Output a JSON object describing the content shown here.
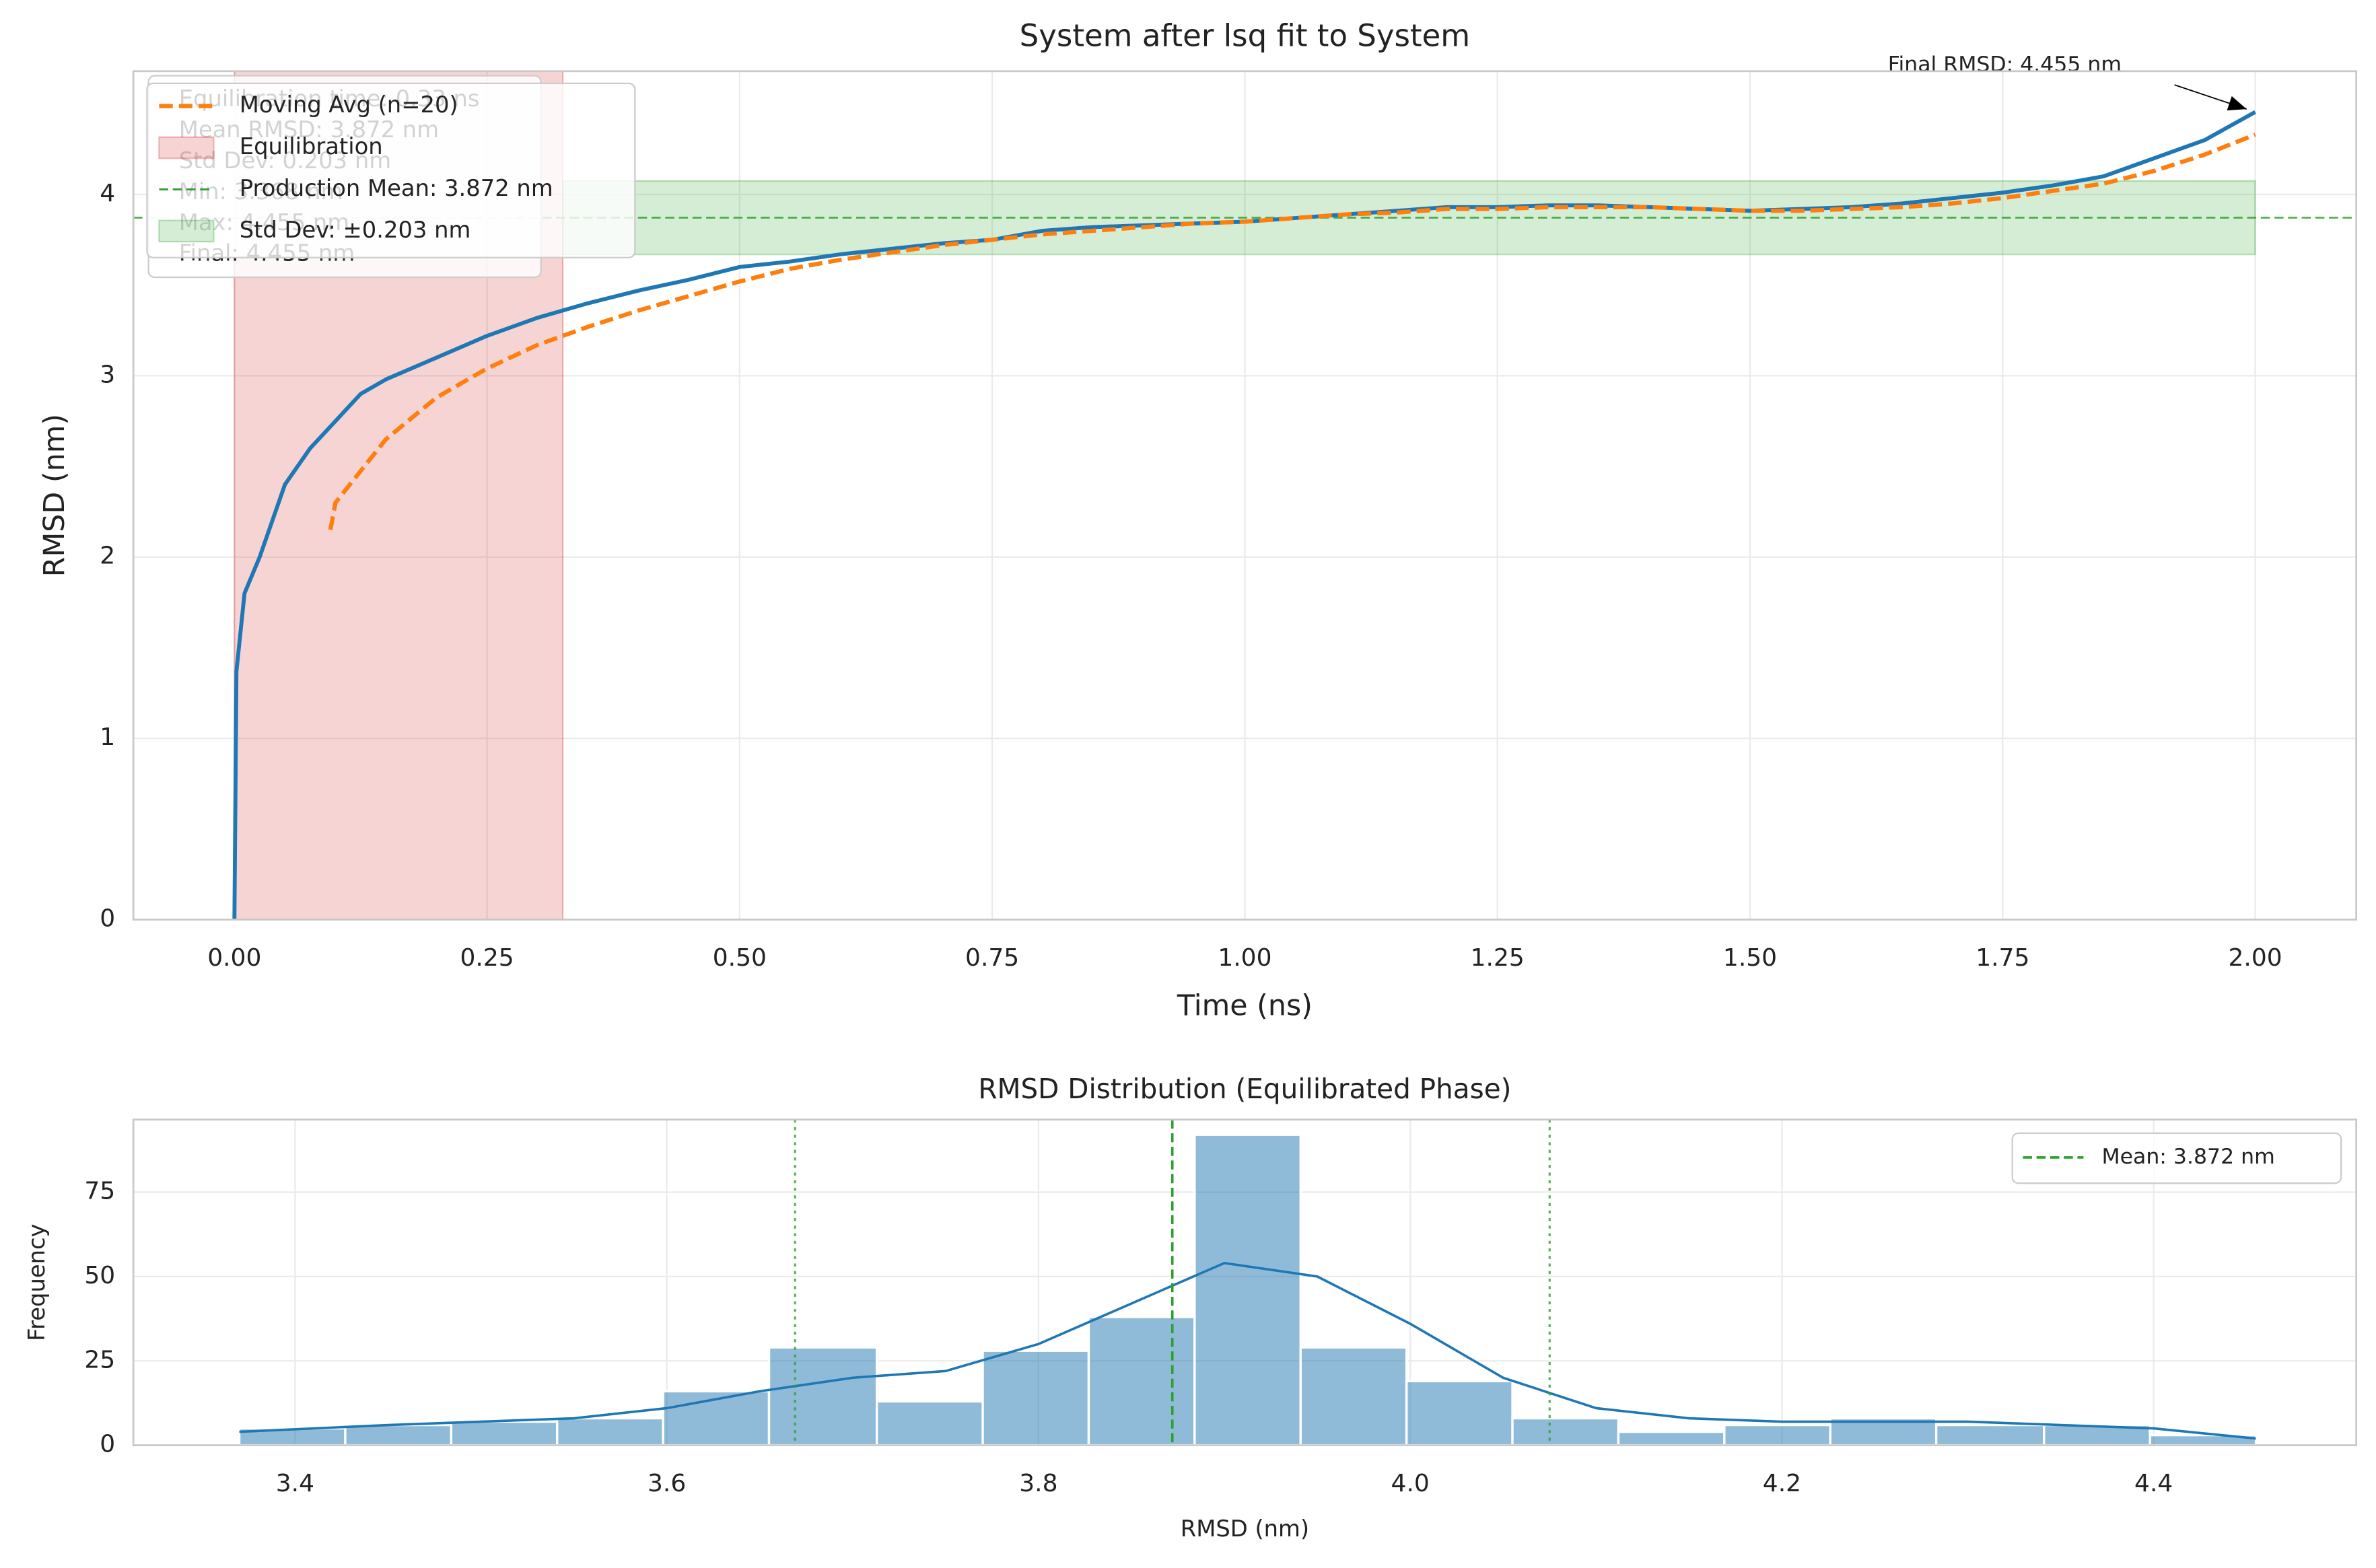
{
  "chart_data": [
    {
      "type": "line",
      "title": "System after lsq fit to System",
      "xlabel": "Time (ns)",
      "ylabel": "RMSD (nm)",
      "xlim": [
        -0.1,
        2.1
      ],
      "ylim": [
        0,
        4.68
      ],
      "xticks": [
        {
          "value": 0,
          "label": "0.00"
        },
        {
          "value": 0.25,
          "label": "0.25"
        },
        {
          "value": 0.5,
          "label": "0.50"
        },
        {
          "value": 0.75,
          "label": "0.75"
        },
        {
          "value": 1,
          "label": "1.00"
        },
        {
          "value": 1.25,
          "label": "1.25"
        },
        {
          "value": 1.5,
          "label": "1.50"
        },
        {
          "value": 1.75,
          "label": "1.75"
        },
        {
          "value": 2,
          "label": "2.00"
        }
      ],
      "yticks": [
        0,
        1,
        2,
        3,
        4
      ],
      "grid": true,
      "legend": "upper left",
      "series": [
        {
          "color": "#1f77b4",
          "x": [
            0,
            0.002,
            0.01,
            0.025,
            0.05,
            0.075,
            0.1,
            0.125,
            0.15,
            0.2,
            0.25,
            0.3,
            0.35,
            0.4,
            0.45,
            0.5,
            0.55,
            0.6,
            0.65,
            0.7,
            0.75,
            0.8,
            0.85,
            0.9,
            0.95,
            1.0,
            1.05,
            1.1,
            1.15,
            1.2,
            1.25,
            1.3,
            1.35,
            1.4,
            1.45,
            1.5,
            1.55,
            1.6,
            1.65,
            1.7,
            1.75,
            1.8,
            1.85,
            1.9,
            1.95,
            2.0
          ],
          "values": [
            0,
            1.37,
            1.8,
            2.0,
            2.4,
            2.6,
            2.75,
            2.9,
            2.98,
            3.1,
            3.22,
            3.32,
            3.4,
            3.47,
            3.53,
            3.6,
            3.63,
            3.67,
            3.7,
            3.73,
            3.75,
            3.8,
            3.82,
            3.83,
            3.84,
            3.85,
            3.87,
            3.89,
            3.91,
            3.93,
            3.93,
            3.94,
            3.94,
            3.93,
            3.92,
            3.91,
            3.92,
            3.93,
            3.95,
            3.98,
            4.01,
            4.05,
            4.1,
            4.2,
            4.3,
            4.455
          ]
        },
        {
          "name": "Moving Avg (n=20)",
          "color": "#ff7f0e",
          "dashed": true,
          "x": [
            0.095,
            0.1,
            0.15,
            0.2,
            0.25,
            0.3,
            0.35,
            0.4,
            0.45,
            0.5,
            0.55,
            0.6,
            0.65,
            0.7,
            0.75,
            0.8,
            0.85,
            0.9,
            0.95,
            1.0,
            1.05,
            1.1,
            1.15,
            1.2,
            1.25,
            1.3,
            1.35,
            1.4,
            1.45,
            1.5,
            1.55,
            1.6,
            1.65,
            1.7,
            1.75,
            1.8,
            1.85,
            1.9,
            1.95,
            2.0
          ],
          "values": [
            2.15,
            2.3,
            2.65,
            2.88,
            3.04,
            3.17,
            3.27,
            3.36,
            3.44,
            3.52,
            3.59,
            3.64,
            3.68,
            3.72,
            3.75,
            3.78,
            3.8,
            3.82,
            3.84,
            3.85,
            3.87,
            3.89,
            3.9,
            3.92,
            3.92,
            3.93,
            3.93,
            3.93,
            3.92,
            3.91,
            3.91,
            3.92,
            3.93,
            3.95,
            3.98,
            4.02,
            4.06,
            4.13,
            4.22,
            4.33
          ]
        }
      ],
      "equilibration": {
        "name": "Equilibration",
        "x": [
          0,
          0.325
        ],
        "color": "#d62728"
      },
      "mean_line": {
        "name": "Production Mean: 3.872 nm",
        "value": 3.872,
        "color": "#2ca02c"
      },
      "std_band": {
        "name": "Std Dev: ±0.203 nm",
        "range": [
          3.669,
          4.075
        ],
        "x": [
          0.325,
          2.0
        ],
        "color": "#2ca02c"
      },
      "stats_text": [
        "Equilibration time: 0.33 ns",
        "Mean RMSD: 3.872 nm",
        "Std Dev: 0.203 nm",
        "Min: 3.368 nm",
        "Max: 4.455 nm",
        "Final: 4.455 nm"
      ],
      "annotation": {
        "text": "Final RMSD: 4.455 nm",
        "x": 2.0,
        "y": 4.455
      }
    },
    {
      "type": "histogram",
      "title": "RMSD Distribution (Equilibrated Phase)",
      "xlabel": "RMSD (nm)",
      "ylabel": "Frequency",
      "xlim": [
        3.313,
        4.509
      ],
      "ylim": [
        0,
        96.5
      ],
      "xticks": [
        3.4,
        3.6,
        3.8,
        {
          "value": 4,
          "label": "4.0"
        },
        4.2,
        4.4
      ],
      "yticks": [
        0,
        25,
        50,
        75
      ],
      "grid": true,
      "legend": "upper right",
      "color": "#1f77b4",
      "bins": [
        3.37,
        3.427,
        3.484,
        3.541,
        3.598,
        3.655,
        3.713,
        3.77,
        3.827,
        3.884,
        3.941,
        3.998,
        4.055,
        4.112,
        4.169,
        4.226,
        4.283,
        4.341,
        4.398,
        4.455
      ],
      "counts": [
        5,
        6,
        7,
        8,
        16,
        29,
        13,
        28,
        38,
        92,
        29,
        19,
        8,
        4,
        6,
        8,
        6,
        6,
        3
      ],
      "kde": {
        "x": [
          3.37,
          3.45,
          3.55,
          3.6,
          3.65,
          3.7,
          3.75,
          3.8,
          3.85,
          3.9,
          3.95,
          4.0,
          4.05,
          4.1,
          4.15,
          4.2,
          4.25,
          4.3,
          4.35,
          4.4,
          4.455
        ],
        "values": [
          4,
          6,
          8,
          11,
          16,
          20,
          22,
          30,
          42,
          54,
          50,
          36,
          20,
          11,
          8,
          7,
          7,
          7,
          6,
          5,
          2
        ]
      },
      "mean_line": {
        "name": "Mean: 3.872 nm",
        "value": 3.872,
        "color": "#2ca02c"
      },
      "std_lines": [
        3.669,
        4.075
      ]
    }
  ]
}
